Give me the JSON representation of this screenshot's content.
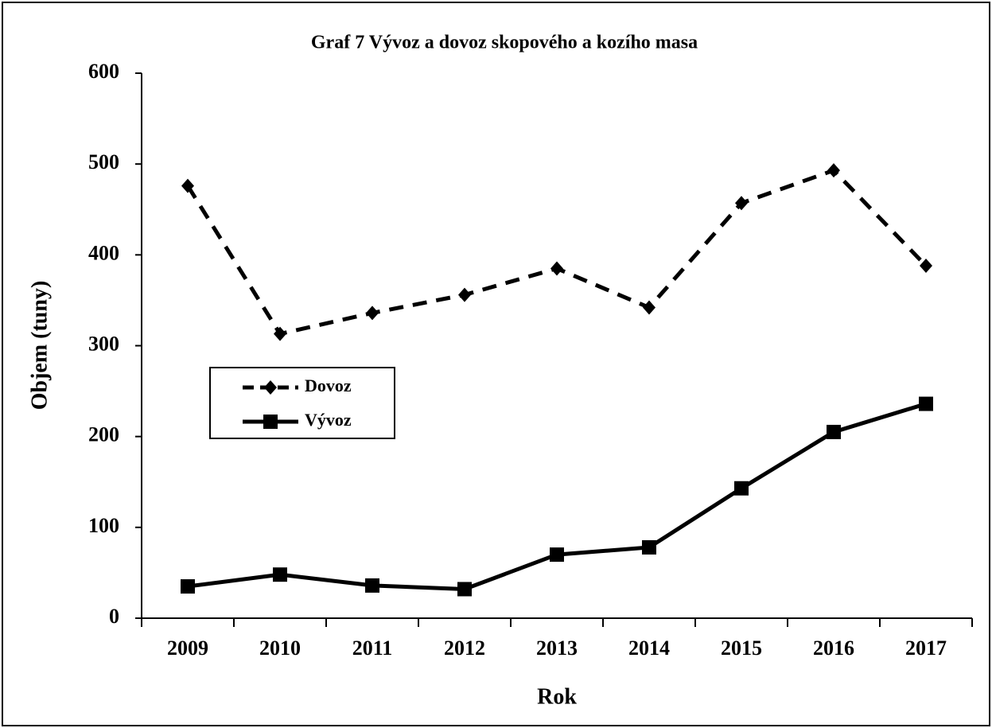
{
  "chart_data": {
    "type": "line",
    "title": "Graf 7 Vývoz a dovoz skopového a kozího masa",
    "x_label": "Rok",
    "y_label": "Objem (tuny)",
    "categories": [
      "2009",
      "2010",
      "2011",
      "2012",
      "2013",
      "2014",
      "2015",
      "2016",
      "2017"
    ],
    "series": [
      {
        "name": "Dovoz",
        "color": "#000000",
        "line_style": "dashed",
        "marker": "diamond",
        "values": [
          476,
          313,
          336,
          356,
          385,
          342,
          457,
          493,
          388
        ]
      },
      {
        "name": "Vývoz",
        "color": "#000000",
        "line_style": "solid",
        "marker": "square",
        "values": [
          35,
          48,
          36,
          32,
          70,
          78,
          143,
          205,
          236
        ]
      }
    ],
    "ylim": [
      0,
      600
    ],
    "yticks": [
      0,
      100,
      200,
      300,
      400,
      500,
      600
    ],
    "grid": false
  }
}
